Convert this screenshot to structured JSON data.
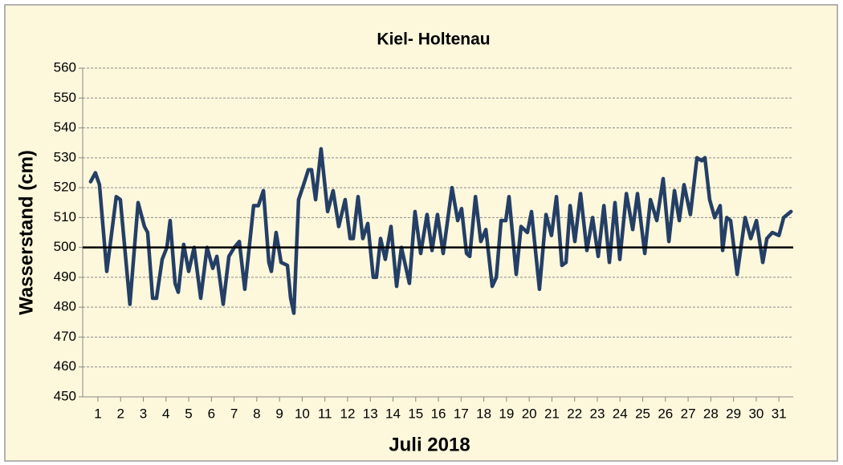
{
  "chart_data": {
    "type": "line",
    "title": "Kiel- Holtenau",
    "ylabel": "Wasserstand (cm)",
    "xlabel": "Juli  2018",
    "color": "#243f66",
    "reference_line": 500,
    "grid": true,
    "ylim": [
      450,
      560
    ],
    "yticks": [
      450,
      460,
      470,
      480,
      490,
      500,
      510,
      520,
      530,
      540,
      550,
      560
    ],
    "xlim": [
      0.33,
      31.63
    ],
    "xticks": [
      1,
      2,
      3,
      4,
      5,
      6,
      7,
      8,
      9,
      10,
      11,
      12,
      13,
      14,
      15,
      16,
      17,
      18,
      19,
      20,
      21,
      22,
      23,
      24,
      25,
      26,
      27,
      28,
      29,
      30,
      31
    ],
    "x": [
      0.68,
      0.89,
      1.07,
      1.39,
      1.81,
      1.99,
      2.41,
      2.77,
      3.05,
      3.19,
      3.41,
      3.58,
      3.83,
      4.04,
      4.18,
      4.4,
      4.54,
      4.78,
      5.0,
      5.24,
      5.53,
      5.81,
      6.06,
      6.24,
      6.52,
      6.77,
      7.01,
      7.23,
      7.47,
      7.86,
      8.07,
      8.29,
      8.53,
      8.64,
      8.85,
      9.07,
      9.35,
      9.49,
      9.63,
      9.84,
      10.06,
      10.27,
      10.41,
      10.59,
      10.83,
      11.12,
      11.36,
      11.61,
      11.89,
      12.11,
      12.25,
      12.46,
      12.67,
      12.89,
      13.13,
      13.27,
      13.45,
      13.66,
      13.91,
      14.16,
      14.37,
      14.72,
      14.97,
      15.22,
      15.5,
      15.72,
      15.96,
      16.21,
      16.6,
      16.85,
      17.02,
      17.24,
      17.38,
      17.63,
      17.87,
      18.09,
      18.37,
      18.55,
      18.76,
      18.97,
      19.11,
      19.43,
      19.64,
      19.92,
      20.1,
      20.45,
      20.74,
      20.98,
      21.2,
      21.44,
      21.62,
      21.8,
      22.01,
      22.26,
      22.54,
      22.79,
      23.04,
      23.29,
      23.53,
      23.78,
      23.99,
      24.28,
      24.56,
      24.77,
      25.09,
      25.34,
      25.62,
      25.9,
      26.15,
      26.4,
      26.61,
      26.82,
      27.1,
      27.39,
      27.6,
      27.74,
      27.95,
      28.17,
      28.41,
      28.52,
      28.7,
      28.87,
      29.16,
      29.51,
      29.76,
      30.01,
      30.29,
      30.47,
      30.71,
      31.0,
      31.21,
      31.53
    ],
    "values": [
      522,
      525,
      521,
      492,
      517,
      516,
      481,
      515,
      507,
      505,
      483,
      483,
      496,
      500,
      509,
      488,
      485,
      501,
      492,
      500,
      483,
      500,
      493,
      497,
      481,
      497,
      500,
      502,
      486,
      514,
      514,
      519,
      495,
      492,
      505,
      495,
      494,
      483,
      478,
      516,
      521,
      526,
      526,
      516,
      533,
      512,
      519,
      507,
      516,
      503,
      503,
      517,
      503,
      508,
      490,
      490,
      503,
      496,
      507,
      487,
      500,
      488,
      512,
      498,
      511,
      499,
      511,
      498,
      520,
      509,
      513,
      498,
      497,
      517,
      502,
      506,
      487,
      490,
      509,
      509,
      517,
      491,
      507,
      505,
      512,
      486,
      511,
      504,
      517,
      494,
      495,
      514,
      502,
      518,
      499,
      510,
      497,
      514,
      495,
      515,
      496,
      518,
      506,
      518,
      498,
      516,
      509,
      523,
      502,
      519,
      509,
      521,
      511,
      530,
      529,
      530,
      516,
      510,
      514,
      499,
      510,
      509,
      491,
      510,
      503,
      509,
      495,
      503,
      505,
      504,
      510,
      512
    ]
  }
}
